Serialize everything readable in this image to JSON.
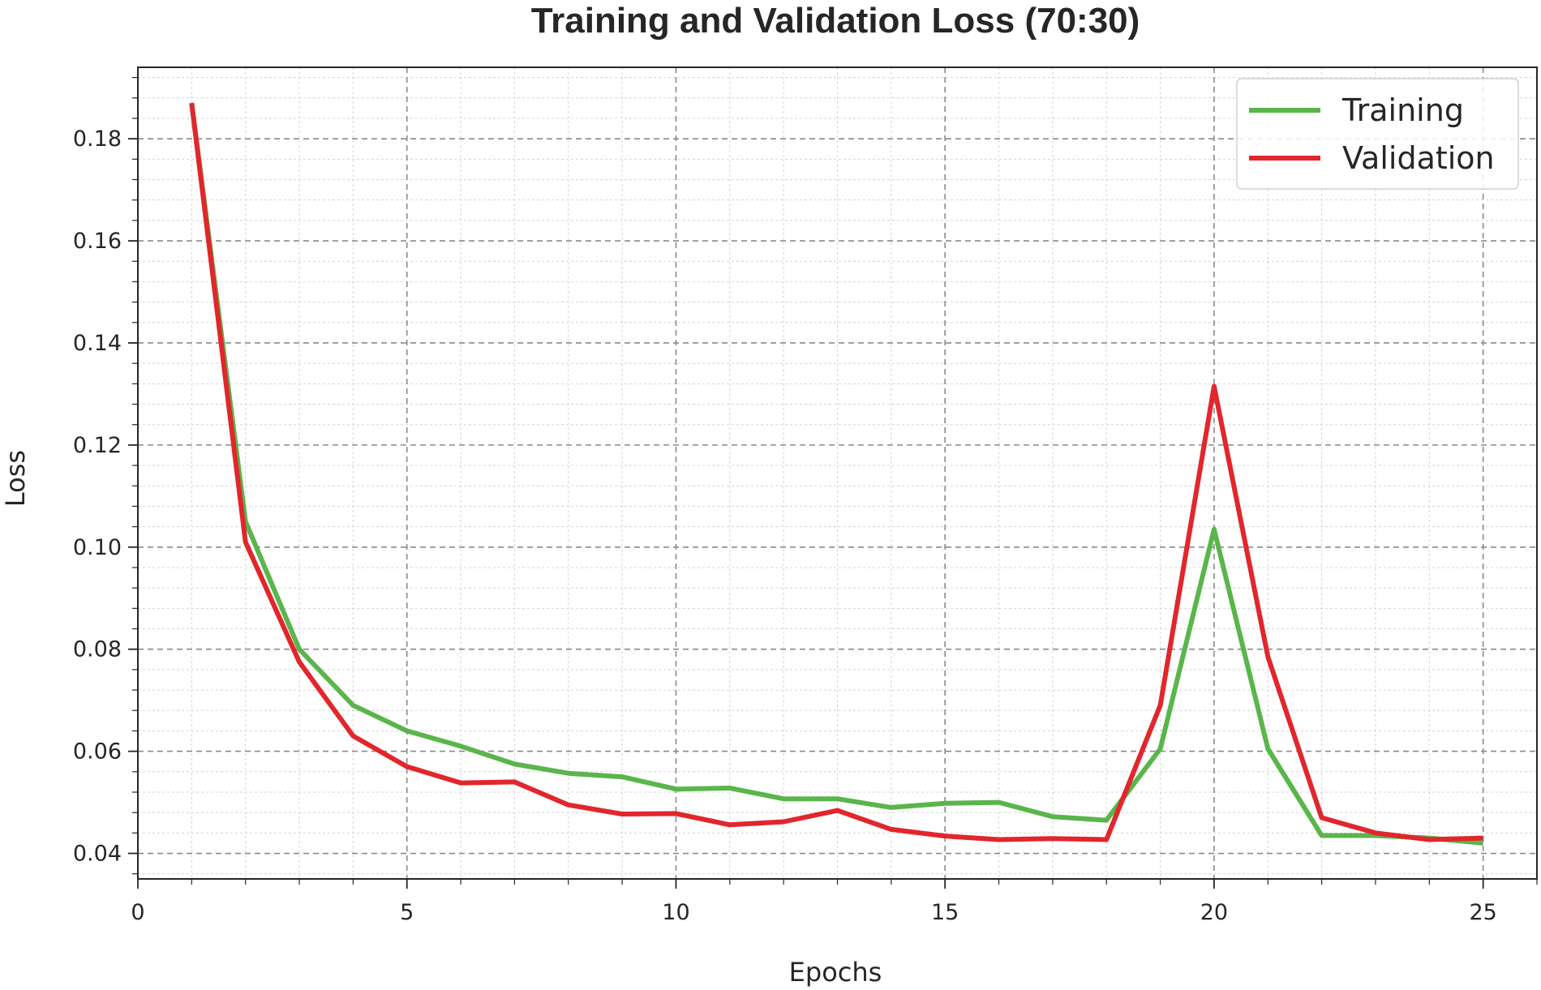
{
  "chart_data": {
    "type": "line",
    "title": "Training and Validation Loss (70:30)",
    "xlabel": "Epochs",
    "ylabel": "Loss",
    "xlim": [
      0,
      26
    ],
    "ylim": [
      0.035,
      0.194
    ],
    "xticks": [
      0,
      5,
      10,
      15,
      20,
      25
    ],
    "yticks": [
      0.04,
      0.06,
      0.08,
      0.1,
      0.12,
      0.14,
      0.16,
      0.18
    ],
    "xtick_labels": [
      "0",
      "5",
      "10",
      "15",
      "20",
      "25"
    ],
    "ytick_labels": [
      "0.04",
      "0.06",
      "0.08",
      "0.10",
      "0.12",
      "0.14",
      "0.16",
      "0.18"
    ],
    "grid": true,
    "legend_position": "top-right",
    "x": [
      1,
      2,
      3,
      4,
      5,
      6,
      7,
      8,
      9,
      10,
      11,
      12,
      13,
      14,
      15,
      16,
      17,
      18,
      19,
      20,
      21,
      22,
      23,
      24,
      25
    ],
    "series": [
      {
        "name": "Training",
        "color": "#5ab54b",
        "values": [
          0.187,
          0.105,
          0.08,
          0.069,
          0.064,
          0.061,
          0.0575,
          0.0557,
          0.055,
          0.0526,
          0.0528,
          0.0507,
          0.0507,
          0.049,
          0.0498,
          0.05,
          0.0472,
          0.0465,
          0.0605,
          0.1035,
          0.0605,
          0.0435,
          0.0435,
          0.043,
          0.042
        ]
      },
      {
        "name": "Validation",
        "color": "#e1262c",
        "values": [
          0.187,
          0.101,
          0.0775,
          0.063,
          0.057,
          0.0538,
          0.054,
          0.0495,
          0.0477,
          0.0478,
          0.0456,
          0.0462,
          0.0484,
          0.0447,
          0.0434,
          0.0427,
          0.0429,
          0.0427,
          0.069,
          0.1315,
          0.0785,
          0.047,
          0.044,
          0.0427,
          0.043
        ]
      }
    ]
  }
}
